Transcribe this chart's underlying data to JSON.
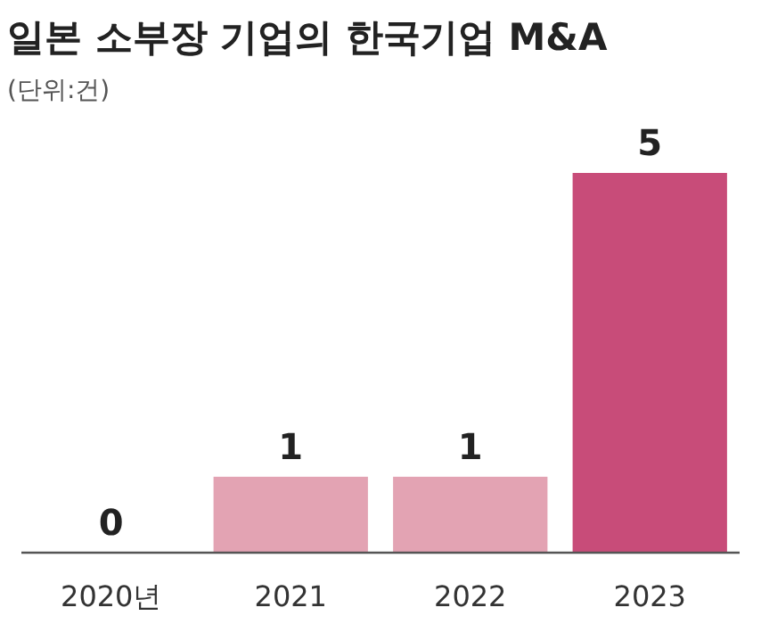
{
  "chart_data": {
    "type": "bar",
    "title": "일본 소부장 기업의 한국기업 M&A",
    "subtitle": "(단위:건)",
    "categories": [
      "2020년",
      "2021",
      "2022",
      "2023"
    ],
    "values": [
      0,
      1,
      1,
      5
    ],
    "colors": [
      "#e3a3b3",
      "#e3a3b3",
      "#e3a3b3",
      "#c84c79"
    ],
    "data_labels": true
  }
}
